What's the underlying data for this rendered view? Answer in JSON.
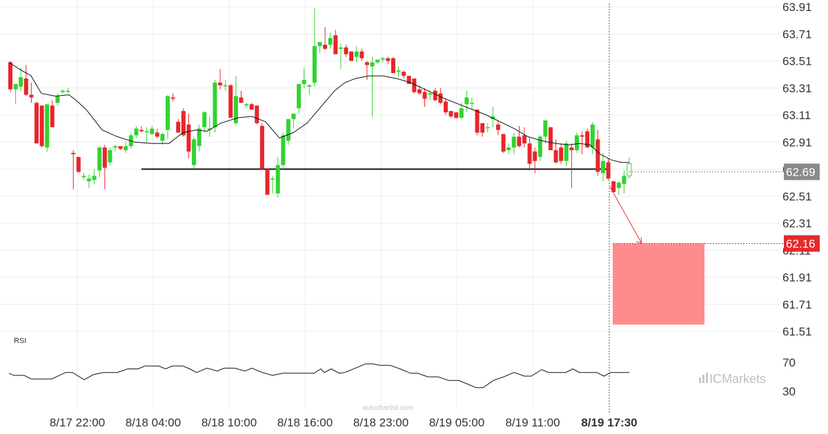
{
  "chart_data": {
    "type": "candlestick",
    "y_ticks": [
      "63.91",
      "63.71",
      "63.51",
      "63.31",
      "63.11",
      "62.91",
      "62.71",
      "62.51",
      "62.31",
      "62.11",
      "61.91",
      "61.71",
      "61.51"
    ],
    "x_ticks": [
      "8/17 22:00",
      "8/18 04:00",
      "8/18 10:00",
      "8/18 16:00",
      "8/18 23:00",
      "8/19 05:00",
      "8/19 11:00",
      "8/19 17:30"
    ],
    "ylim": [
      61.45,
      63.95
    ],
    "current_price": "62.69",
    "target_price": "62.16",
    "support_level": 62.71,
    "target_zone": {
      "top": 62.16,
      "bottom": 61.56
    },
    "candles": [
      [
        63.5,
        63.51,
        63.28,
        63.3
      ],
      [
        63.3,
        63.34,
        63.19,
        63.34
      ],
      [
        63.32,
        63.46,
        63.29,
        63.39
      ],
      [
        63.38,
        63.48,
        63.25,
        63.26
      ],
      [
        63.26,
        63.35,
        63.2,
        63.24
      ],
      [
        63.2,
        63.21,
        62.9,
        62.9
      ],
      [
        63.18,
        63.18,
        62.87,
        62.88
      ],
      [
        62.87,
        63.18,
        62.84,
        63.19
      ],
      [
        63.18,
        63.22,
        63.02,
        63.02
      ],
      [
        63.2,
        63.27,
        63.18,
        63.25
      ],
      [
        63.28,
        63.3,
        63.27,
        63.29
      ],
      [
        63.29,
        63.31,
        63.27,
        63.29
      ],
      [
        62.83,
        62.85,
        62.56,
        62.82
      ],
      [
        62.8,
        62.8,
        62.68,
        62.69
      ],
      [
        62.65,
        62.68,
        62.63,
        62.66
      ],
      [
        62.62,
        62.67,
        62.57,
        62.64
      ],
      [
        62.63,
        62.71,
        62.6,
        62.66
      ],
      [
        62.7,
        62.88,
        62.65,
        62.87
      ],
      [
        62.87,
        62.89,
        62.56,
        62.72
      ],
      [
        62.76,
        62.87,
        62.74,
        62.85
      ],
      [
        62.87,
        62.89,
        62.84,
        62.88
      ],
      [
        62.88,
        62.88,
        62.85,
        62.86
      ],
      [
        62.85,
        62.91,
        62.83,
        62.88
      ],
      [
        62.88,
        62.98,
        62.86,
        62.96
      ],
      [
        62.96,
        63.03,
        62.94,
        63.01
      ],
      [
        63.0,
        63.03,
        62.98,
        62.99
      ],
      [
        62.99,
        63.02,
        62.91,
        62.99
      ],
      [
        62.97,
        63.03,
        62.96,
        63.01
      ],
      [
        62.98,
        63.01,
        62.94,
        62.95
      ],
      [
        62.92,
        62.98,
        62.89,
        62.97
      ],
      [
        63.0,
        63.26,
        62.93,
        63.25
      ],
      [
        63.24,
        63.27,
        63.21,
        63.23
      ],
      [
        63.06,
        63.08,
        62.99,
        62.98
      ],
      [
        63.14,
        63.16,
        62.95,
        62.96
      ],
      [
        63.04,
        63.12,
        62.79,
        62.84
      ],
      [
        62.74,
        62.95,
        62.71,
        62.93
      ],
      [
        62.88,
        63.04,
        62.84,
        63.01
      ],
      [
        63.02,
        63.14,
        62.98,
        63.13
      ],
      [
        63.0,
        63.1,
        62.95,
        63.01
      ],
      [
        63.02,
        63.37,
        62.98,
        63.35
      ],
      [
        63.35,
        63.45,
        63.3,
        63.33
      ],
      [
        63.33,
        63.37,
        63.29,
        63.33
      ],
      [
        63.33,
        63.34,
        63.1,
        63.09
      ],
      [
        63.05,
        63.4,
        63.03,
        63.25
      ],
      [
        63.24,
        63.29,
        63.2,
        63.2
      ],
      [
        63.18,
        63.2,
        63.16,
        63.19
      ],
      [
        63.19,
        63.2,
        63.15,
        63.15
      ],
      [
        63.18,
        63.18,
        63.04,
        63.05
      ],
      [
        63.03,
        63.05,
        62.71,
        62.71
      ],
      [
        62.71,
        62.71,
        62.53,
        62.52
      ],
      [
        62.64,
        62.66,
        62.53,
        62.64
      ],
      [
        62.53,
        62.8,
        62.5,
        62.74
      ],
      [
        62.74,
        62.98,
        62.71,
        62.96
      ],
      [
        62.92,
        63.08,
        62.89,
        63.08
      ],
      [
        63.08,
        63.12,
        63.01,
        63.12
      ],
      [
        63.16,
        63.34,
        63.12,
        63.34
      ],
      [
        63.34,
        63.46,
        63.31,
        63.37
      ],
      [
        63.32,
        63.34,
        63.26,
        63.33
      ],
      [
        63.35,
        63.9,
        63.32,
        63.62
      ],
      [
        63.62,
        63.64,
        63.57,
        63.65
      ],
      [
        63.63,
        63.76,
        63.59,
        63.6
      ],
      [
        63.63,
        63.72,
        63.6,
        63.68
      ],
      [
        63.7,
        63.74,
        63.57,
        63.56
      ],
      [
        63.6,
        63.64,
        63.45,
        63.61
      ],
      [
        63.61,
        63.63,
        63.54,
        63.56
      ],
      [
        63.58,
        63.58,
        63.52,
        63.51
      ],
      [
        63.54,
        63.62,
        63.5,
        63.58
      ],
      [
        63.58,
        63.6,
        63.51,
        63.53
      ],
      [
        63.5,
        63.51,
        63.37,
        63.48
      ],
      [
        63.47,
        63.54,
        63.1,
        63.5
      ],
      [
        63.5,
        63.52,
        63.49,
        63.52
      ],
      [
        63.52,
        63.54,
        63.5,
        63.53
      ],
      [
        63.53,
        63.54,
        63.49,
        63.51
      ],
      [
        63.53,
        63.54,
        63.42,
        63.42
      ],
      [
        63.43,
        63.47,
        63.39,
        63.44
      ],
      [
        63.43,
        63.44,
        63.38,
        63.4
      ],
      [
        63.4,
        63.4,
        63.34,
        63.34
      ],
      [
        63.38,
        63.38,
        63.27,
        63.28
      ],
      [
        63.3,
        63.33,
        63.26,
        63.27
      ],
      [
        63.28,
        63.31,
        63.17,
        63.23
      ],
      [
        63.26,
        63.29,
        63.22,
        63.27
      ],
      [
        63.29,
        63.31,
        63.21,
        63.22
      ],
      [
        63.27,
        63.31,
        63.19,
        63.2
      ],
      [
        63.21,
        63.23,
        63.11,
        63.13
      ],
      [
        63.14,
        63.14,
        63.09,
        63.1
      ],
      [
        63.13,
        63.13,
        63.08,
        63.09
      ],
      [
        63.09,
        63.2,
        63.08,
        63.16
      ],
      [
        63.19,
        63.29,
        63.13,
        63.24
      ],
      [
        63.2,
        63.24,
        63.15,
        63.2
      ],
      [
        63.15,
        63.15,
        62.96,
        62.98
      ],
      [
        63.05,
        63.05,
        62.95,
        62.98
      ],
      [
        63.02,
        63.05,
        62.98,
        63.02
      ],
      [
        63.08,
        63.17,
        63.02,
        63.1
      ],
      [
        63.04,
        63.07,
        62.96,
        63.0
      ],
      [
        62.97,
        62.97,
        62.83,
        62.84
      ],
      [
        62.85,
        62.9,
        62.82,
        62.87
      ],
      [
        62.87,
        62.98,
        62.82,
        62.95
      ],
      [
        62.95,
        63.03,
        62.87,
        62.88
      ],
      [
        62.96,
        63.02,
        62.87,
        62.9
      ],
      [
        62.9,
        62.94,
        62.7,
        62.75
      ],
      [
        62.84,
        62.87,
        62.68,
        62.77
      ],
      [
        62.8,
        62.96,
        62.77,
        62.95
      ],
      [
        62.95,
        63.07,
        62.9,
        63.07
      ],
      [
        63.02,
        63.02,
        62.86,
        62.85
      ],
      [
        62.85,
        62.93,
        62.75,
        62.76
      ],
      [
        62.87,
        62.9,
        62.75,
        62.77
      ],
      [
        62.77,
        62.92,
        62.73,
        62.9
      ],
      [
        62.87,
        62.9,
        62.57,
        62.85
      ],
      [
        62.85,
        62.98,
        62.83,
        62.96
      ],
      [
        62.96,
        62.99,
        62.82,
        62.95
      ],
      [
        62.99,
        63.01,
        62.87,
        62.87
      ],
      [
        62.87,
        63.06,
        62.82,
        63.04
      ],
      [
        62.93,
        63.0,
        62.66,
        62.69
      ],
      [
        62.68,
        62.83,
        62.62,
        62.77
      ],
      [
        62.76,
        62.79,
        62.63,
        62.64
      ],
      [
        62.62,
        62.62,
        62.54,
        62.54
      ],
      [
        62.57,
        62.62,
        62.52,
        62.61
      ],
      [
        62.6,
        62.7,
        62.53,
        62.66
      ],
      [
        62.66,
        62.8,
        62.64,
        62.75
      ]
    ],
    "ma": [
      [
        13,
        63.5
      ],
      [
        28,
        63.45
      ],
      [
        45,
        63.4
      ],
      [
        60,
        63.27
      ],
      [
        80,
        63.25
      ],
      [
        100,
        63.26
      ],
      [
        110,
        63.22
      ],
      [
        125,
        63.15
      ],
      [
        148,
        63.0
      ],
      [
        170,
        62.95
      ],
      [
        195,
        62.91
      ],
      [
        220,
        62.9
      ],
      [
        245,
        62.9
      ],
      [
        265,
        62.98
      ],
      [
        285,
        63.0
      ],
      [
        300,
        62.99
      ],
      [
        320,
        63.05
      ],
      [
        345,
        63.09
      ],
      [
        365,
        63.1
      ],
      [
        385,
        63.06
      ],
      [
        405,
        62.94
      ],
      [
        425,
        62.98
      ],
      [
        445,
        63.05
      ],
      [
        465,
        63.17
      ],
      [
        485,
        63.29
      ],
      [
        500,
        63.35
      ],
      [
        515,
        63.38
      ],
      [
        535,
        63.4
      ],
      [
        555,
        63.4
      ],
      [
        575,
        63.38
      ],
      [
        595,
        63.35
      ],
      [
        620,
        63.29
      ],
      [
        645,
        63.23
      ],
      [
        665,
        63.19
      ],
      [
        685,
        63.15
      ],
      [
        705,
        63.11
      ],
      [
        725,
        63.06
      ],
      [
        745,
        63.01
      ],
      [
        765,
        62.95
      ],
      [
        785,
        62.92
      ],
      [
        805,
        62.9
      ],
      [
        825,
        62.89
      ],
      [
        840,
        62.9
      ],
      [
        855,
        62.89
      ],
      [
        870,
        62.82
      ],
      [
        885,
        62.78
      ],
      [
        900,
        62.76
      ],
      [
        912,
        62.76
      ]
    ],
    "rsi": {
      "label": "RSI",
      "ticks": [
        "70",
        "30"
      ],
      "values": [
        [
          13,
          55
        ],
        [
          20,
          52
        ],
        [
          35,
          52
        ],
        [
          45,
          47
        ],
        [
          75,
          47
        ],
        [
          95,
          56
        ],
        [
          105,
          56
        ],
        [
          122,
          46
        ],
        [
          135,
          53
        ],
        [
          150,
          56
        ],
        [
          170,
          56
        ],
        [
          185,
          61
        ],
        [
          200,
          61
        ],
        [
          210,
          65
        ],
        [
          230,
          65
        ],
        [
          240,
          61
        ],
        [
          250,
          65
        ],
        [
          265,
          65
        ],
        [
          275,
          61
        ],
        [
          285,
          56
        ],
        [
          300,
          62
        ],
        [
          315,
          58
        ],
        [
          325,
          62
        ],
        [
          340,
          62
        ],
        [
          355,
          58
        ],
        [
          365,
          62
        ],
        [
          380,
          56
        ],
        [
          395,
          52
        ],
        [
          410,
          55
        ],
        [
          455,
          55
        ],
        [
          465,
          61
        ],
        [
          470,
          56
        ],
        [
          480,
          61
        ],
        [
          492,
          55
        ],
        [
          500,
          56
        ],
        [
          515,
          62
        ],
        [
          530,
          68
        ],
        [
          540,
          68
        ],
        [
          550,
          66
        ],
        [
          565,
          66
        ],
        [
          580,
          61
        ],
        [
          595,
          55
        ],
        [
          605,
          55
        ],
        [
          620,
          50
        ],
        [
          635,
          50
        ],
        [
          650,
          45
        ],
        [
          665,
          45
        ],
        [
          680,
          39
        ],
        [
          690,
          35
        ],
        [
          700,
          35
        ],
        [
          715,
          45
        ],
        [
          730,
          50
        ],
        [
          745,
          56
        ],
        [
          760,
          51
        ],
        [
          770,
          51
        ],
        [
          785,
          60
        ],
        [
          795,
          56
        ],
        [
          805,
          56
        ],
        [
          820,
          56
        ],
        [
          830,
          61
        ],
        [
          840,
          56
        ],
        [
          865,
          56
        ],
        [
          875,
          51
        ],
        [
          885,
          56
        ],
        [
          895,
          56
        ],
        [
          912,
          56
        ]
      ]
    }
  },
  "brand": {
    "ic": "IC",
    "markets": "Markets"
  },
  "watermark": "autochartist.com",
  "colors": {
    "up": "#31d331",
    "down": "#e8262c",
    "tag_grey": "#8a8a8a",
    "tag_red": "#e52a2a",
    "zone": "#ff8c8c"
  }
}
